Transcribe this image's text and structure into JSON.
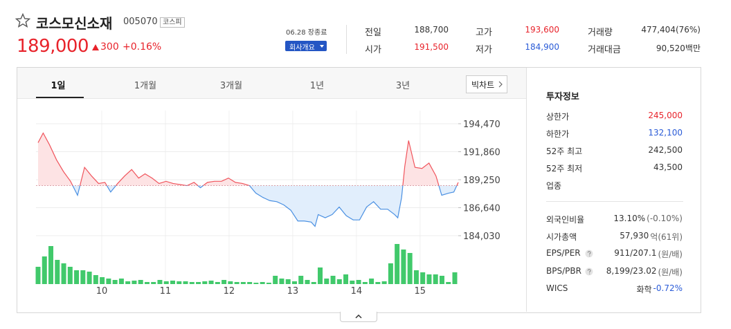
{
  "header": {
    "name": "코스모신소재",
    "code": "005070",
    "market": "코스피",
    "price": "189,000",
    "change": "300",
    "change_pct": "+0.16%",
    "status": "06.28 장종료",
    "company_button": "회사개요",
    "up_color": "#e8232b"
  },
  "summary": [
    {
      "label": "전일",
      "value": "188,700"
    },
    {
      "label": "고가",
      "value": "193,600",
      "color": "#e8232b"
    },
    {
      "label": "거래량",
      "value": "477,404(76%)"
    },
    {
      "label": "시가",
      "value": "191,500",
      "color": "#e8232b"
    },
    {
      "label": "저가",
      "value": "184,900",
      "color": "#2a5bd7"
    },
    {
      "label": "거래대금",
      "value": "90,520백만"
    }
  ],
  "tabs": [
    "1일",
    "1개월",
    "3개월",
    "1년",
    "3년"
  ],
  "selected_tab": 0,
  "big_chart": "빅차트",
  "chart_data": [
    {
      "type": "line",
      "x": [
        9.0,
        9.08,
        9.18,
        9.29,
        9.4,
        9.51,
        9.62,
        9.73,
        9.84,
        9.95,
        10.05,
        10.14,
        10.25,
        10.36,
        10.47,
        10.58,
        10.68,
        10.79,
        10.9,
        11.01,
        11.12,
        11.23,
        11.34,
        11.45,
        11.55,
        11.66,
        11.77,
        11.88,
        11.99,
        12.1,
        12.21,
        12.32,
        12.42,
        12.53,
        12.64,
        12.75,
        12.86,
        12.97,
        13.08,
        13.18,
        13.29,
        13.35,
        13.4,
        13.51,
        13.62,
        13.73,
        13.84,
        13.95,
        14.05,
        14.16,
        14.27,
        14.38,
        14.49,
        14.6,
        14.65,
        14.71,
        14.76,
        14.82,
        14.92,
        15.03,
        15.14,
        15.25,
        15.34,
        15.45,
        15.53,
        15.6
      ],
      "values": [
        192700,
        193600,
        192500,
        191100,
        190000,
        189100,
        187800,
        190400,
        189600,
        188900,
        189000,
        188100,
        188900,
        189600,
        190200,
        189400,
        189800,
        189400,
        188900,
        189100,
        188900,
        188800,
        188700,
        189000,
        188500,
        189000,
        189100,
        189100,
        189400,
        189000,
        188900,
        188700,
        188000,
        187600,
        187300,
        187200,
        186900,
        186400,
        185400,
        185400,
        185300,
        184900,
        186000,
        185700,
        186000,
        186700,
        185900,
        185500,
        185500,
        186700,
        187200,
        186500,
        186500,
        186000,
        185700,
        187600,
        190500,
        192900,
        190400,
        190300,
        190800,
        189600,
        187800,
        188000,
        188100,
        189000
      ],
      "reference_line": 188700,
      "color_up": "#f0545c",
      "fill_up": "#fde3e4",
      "color_down": "#4a90e2",
      "fill_down": "#e1eefc",
      "xlim": [
        9,
        15.6
      ],
      "xticks": [
        10,
        11,
        12,
        13,
        14,
        15
      ],
      "ylim": [
        184030,
        194470
      ],
      "yticks": [
        {
          "value": 194470,
          "label": "194,470"
        },
        {
          "value": 191860,
          "label": "191,860"
        },
        {
          "value": 189250,
          "label": "189,250"
        },
        {
          "value": 186640,
          "label": "186,640"
        },
        {
          "value": 184030,
          "label": "184,030"
        }
      ],
      "grid": true
    },
    {
      "type": "bar",
      "color": "#41c96b",
      "values": [
        25,
        40,
        55,
        35,
        30,
        25,
        20,
        20,
        18,
        13,
        10,
        8,
        6,
        8,
        4,
        5,
        6,
        3,
        3,
        6,
        4,
        5,
        4,
        4,
        3,
        3,
        4,
        5,
        3,
        6,
        4,
        3,
        3,
        3,
        2,
        3,
        2,
        12,
        8,
        7,
        4,
        12,
        6,
        3,
        24,
        8,
        12,
        7,
        14,
        5,
        6,
        3,
        8,
        3,
        4,
        30,
        58,
        50,
        45,
        20,
        17,
        14,
        14,
        12,
        3,
        17
      ]
    }
  ],
  "investment": {
    "title": "투자정보",
    "rows": [
      {
        "label": "상한가",
        "value": "245,000",
        "color": "#e8232b"
      },
      {
        "label": "하한가",
        "value": "132,100",
        "color": "#2a5bd7"
      },
      {
        "label": "52주 최고",
        "value": "242,500"
      },
      {
        "label": "52주 최저",
        "value": "43,500"
      },
      {
        "label": "업종"
      }
    ],
    "rows2": [
      {
        "label": "외국인비율",
        "value": "13.10%",
        "extra": "(-0.10%)"
      },
      {
        "label": "시가총액",
        "value": "57,930",
        "extra": "억(61위)"
      },
      {
        "label": "EPS/PER",
        "value": "911/207.1",
        "extra": "(원/배)",
        "help": true
      },
      {
        "label": "BPS/PBR",
        "value": "8,199/23.02",
        "extra": "(원/배)",
        "help": true
      },
      {
        "label": "WICS",
        "value": "화학",
        "extra": "-0.72%",
        "extra_color": "#2a5bd7"
      }
    ]
  }
}
